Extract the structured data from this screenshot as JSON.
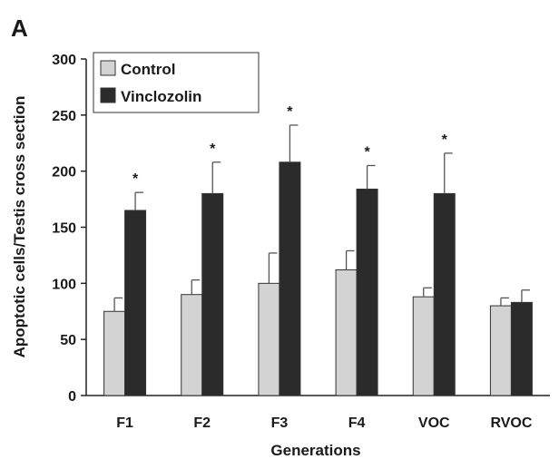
{
  "panel_label": "A",
  "chart_data": {
    "type": "bar",
    "title": "",
    "xlabel": "Generations",
    "ylabel": "Apoptotic cells/Testis cross section",
    "ylim": [
      0,
      300
    ],
    "yticks": [
      0,
      50,
      100,
      150,
      200,
      250,
      300
    ],
    "categories": [
      "F1",
      "F2",
      "F3",
      "F4",
      "VOC",
      "RVOC"
    ],
    "series": [
      {
        "name": "Control",
        "color": "#d3d3d3",
        "values": [
          75,
          90,
          100,
          112,
          88,
          80
        ],
        "errors": [
          12,
          13,
          27,
          17,
          8,
          7
        ]
      },
      {
        "name": "Vinclozolin",
        "color": "#2b2b2b",
        "values": [
          165,
          180,
          208,
          184,
          180,
          83
        ],
        "errors": [
          16,
          28,
          33,
          21,
          36,
          11
        ]
      }
    ],
    "significance_marker": "*",
    "significant": [
      true,
      true,
      true,
      true,
      true,
      false
    ],
    "legend": "top-left",
    "grid": false
  }
}
